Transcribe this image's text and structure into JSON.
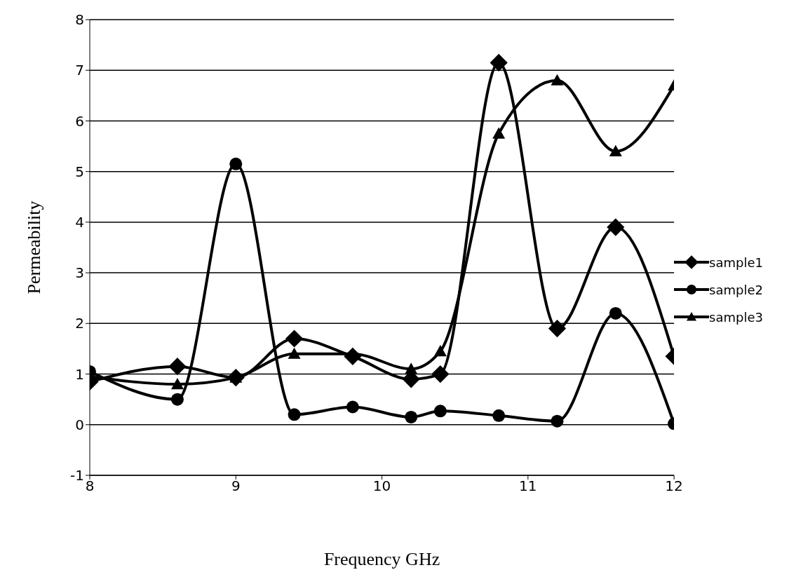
{
  "chart_data": {
    "type": "line",
    "xlabel": "Frequency GHz",
    "ylabel": "Permeability",
    "x": [
      8,
      8.6,
      9,
      9.4,
      9.8,
      10.2,
      10.4,
      10.8,
      11.2,
      11.6,
      12
    ],
    "series": [
      {
        "name": "sample1",
        "color": "#000000",
        "marker": "diamond",
        "values": [
          0.85,
          1.15,
          0.93,
          1.7,
          1.35,
          0.9,
          1.0,
          7.15,
          1.9,
          3.9,
          1.35
        ]
      },
      {
        "name": "sample2",
        "color": "#000000",
        "marker": "circle",
        "values": [
          1.05,
          0.5,
          5.15,
          0.2,
          0.35,
          0.15,
          0.27,
          0.18,
          0.07,
          2.2,
          0.02
        ]
      },
      {
        "name": "sample3",
        "color": "#000000",
        "marker": "triangle",
        "values": [
          0.95,
          0.8,
          0.93,
          1.4,
          1.4,
          1.1,
          1.45,
          5.75,
          6.8,
          5.4,
          6.7
        ]
      }
    ],
    "xlim": [
      8,
      12
    ],
    "xticks": [
      8,
      9,
      10,
      11,
      12
    ],
    "ylim": [
      -1,
      8
    ],
    "yticks": [
      -1,
      0,
      1,
      2,
      3,
      4,
      5,
      6,
      7,
      8
    ],
    "grid": "y",
    "legend": "right",
    "line_style": "solid"
  }
}
